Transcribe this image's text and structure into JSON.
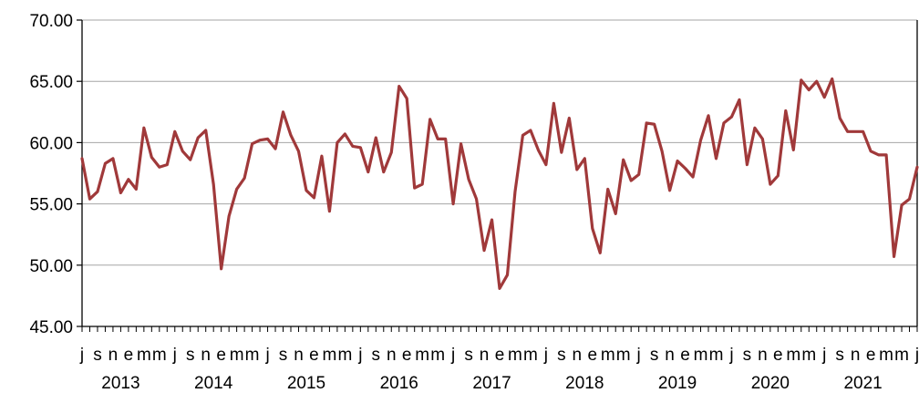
{
  "chart_data": {
    "type": "line",
    "title": "",
    "xlabel": "",
    "ylabel": "",
    "ylim": [
      45,
      70
    ],
    "yticks": [
      "45.00",
      "50.00",
      "55.00",
      "60.00",
      "65.00",
      "70.00"
    ],
    "grid": true,
    "legend": "none",
    "line_color": "#A0393A",
    "month_tick_labels": [
      "j",
      "s",
      "n",
      "e",
      "m",
      "m",
      "j",
      "s",
      "n",
      "e",
      "m",
      "m",
      "j",
      "s",
      "n",
      "e",
      "m",
      "m",
      "j",
      "s",
      "n",
      "e",
      "m",
      "m",
      "j",
      "s",
      "n",
      "e",
      "m",
      "m",
      "j",
      "s",
      "n",
      "e",
      "m",
      "m",
      "j",
      "s",
      "n",
      "e",
      "m",
      "m",
      "j",
      "s",
      "n",
      "e",
      "m",
      "m",
      "j",
      "s",
      "n",
      "e",
      "m",
      "m",
      "j"
    ],
    "year_labels": [
      "2013",
      "2014",
      "2015",
      "2016",
      "2017",
      "2018",
      "2019",
      "2020",
      "2021"
    ],
    "series": [
      {
        "values": [
          58.7,
          55.4,
          56.0,
          58.3,
          58.7,
          55.9,
          57.0,
          56.2,
          61.2,
          58.8,
          58.0,
          58.2,
          60.9,
          59.3,
          58.6,
          60.4,
          61.0,
          56.6,
          49.7,
          54.0,
          56.2,
          57.1,
          59.9,
          60.2,
          60.3,
          59.5,
          62.5,
          60.6,
          59.3,
          56.1,
          55.5,
          58.9,
          54.4,
          60.0,
          60.7,
          59.7,
          59.6,
          57.6,
          60.4,
          57.6,
          59.2,
          64.6,
          63.6,
          56.3,
          56.6,
          61.9,
          60.3,
          60.3,
          55.0,
          59.9,
          57.0,
          55.4,
          51.2,
          53.7,
          48.1,
          49.2,
          56.0,
          60.6,
          61.0,
          59.4,
          58.2,
          63.2,
          59.2,
          62.0,
          57.8,
          58.7,
          53.0,
          51.0,
          56.2,
          54.2,
          58.6,
          56.9,
          57.4,
          61.6,
          61.5,
          59.3,
          56.1,
          58.5,
          57.9,
          57.2,
          60.2,
          62.2,
          58.7,
          61.6,
          62.1,
          63.5,
          58.2,
          61.2,
          60.3,
          56.6,
          57.3,
          62.6,
          59.4,
          65.1,
          64.3,
          65.0,
          63.7,
          65.2,
          62.0,
          60.9,
          60.9,
          60.9,
          59.3,
          59.0,
          59.0,
          50.7,
          54.9,
          55.4,
          58.0
        ]
      }
    ]
  }
}
